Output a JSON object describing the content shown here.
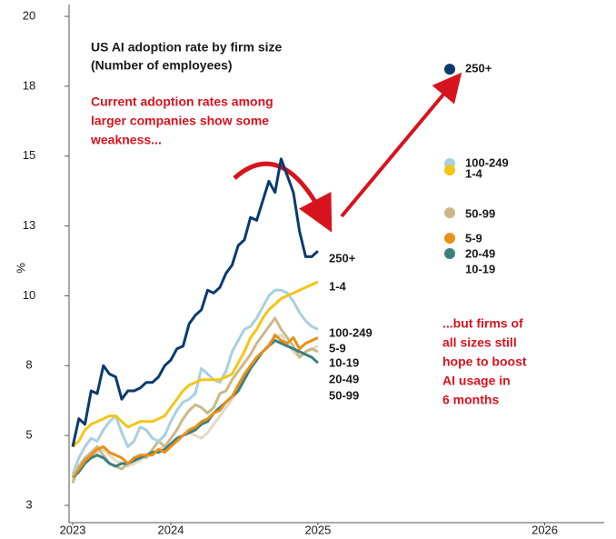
{
  "chart_data": {
    "type": "line",
    "title": "US AI adoption rate by firm size",
    "subtitle": "(Number of employees)",
    "y_label": "%",
    "annotations": [
      [
        "Current adoption rates among",
        "larger companies show some",
        "weakness..."
      ],
      [
        "...but firms of",
        "all sizes still",
        "hope to boost",
        "AI usage in",
        "6 months"
      ]
    ],
    "x": [
      0,
      1,
      2,
      3,
      4,
      5,
      6,
      7,
      8,
      9,
      10,
      11,
      12,
      13,
      14,
      15,
      16,
      17,
      18,
      19,
      20,
      21,
      22,
      23,
      24,
      25,
      26,
      27,
      28,
      29,
      30,
      31,
      32,
      33,
      34,
      35,
      36,
      37,
      38,
      39,
      40
    ],
    "xlim": [
      -0.6,
      86.7
    ],
    "xticks": [
      {
        "value": 0,
        "label": "2023"
      },
      {
        "value": 16,
        "label": "2024"
      },
      {
        "value": 40,
        "label": "2025"
      },
      {
        "value": 77,
        "label": "2026"
      }
    ],
    "ylim": [
      2.5,
      20
    ],
    "yticks": [
      {
        "value": 2.5,
        "label": "3"
      },
      {
        "value": 5,
        "label": "5"
      },
      {
        "value": 7.5,
        "label": "8"
      },
      {
        "value": 10,
        "label": "10"
      },
      {
        "value": 12.5,
        "label": "13"
      },
      {
        "value": 15,
        "label": "15"
      },
      {
        "value": 17.5,
        "label": "18"
      },
      {
        "value": 20,
        "label": "20"
      }
    ],
    "series": [
      {
        "name": "10-19",
        "color": "#e3dacb",
        "outlook": null,
        "values": [
          3.4,
          3.8,
          4.1,
          4.3,
          4.4,
          4.5,
          4.3,
          4.1,
          4.0,
          3.9,
          4.0,
          4.1,
          4.3,
          4.4,
          4.5,
          4.6,
          4.7,
          4.8,
          5.0,
          5.1,
          5.0,
          4.9,
          5.1,
          5.4,
          5.7,
          6.0,
          6.3,
          6.6,
          7.0,
          7.4,
          7.8,
          8.0,
          8.3,
          8.5,
          8.6,
          8.3,
          8.0,
          7.8,
          8.0,
          8.1,
          8.2
        ]
      },
      {
        "name": "50-99",
        "color": "#c9b98a",
        "outlook": 12.97,
        "values": [
          3.3,
          3.9,
          4.2,
          4.4,
          4.6,
          4.3,
          4.0,
          3.9,
          3.8,
          4.0,
          4.1,
          4.3,
          4.2,
          4.5,
          4.8,
          4.6,
          4.9,
          5.2,
          5.6,
          5.9,
          6.1,
          6.0,
          5.8,
          6.0,
          6.5,
          6.6,
          7.0,
          7.3,
          7.6,
          7.9,
          8.3,
          8.6,
          8.9,
          9.2,
          8.8,
          8.5,
          8.2,
          7.8,
          8.0,
          8.1,
          8.0
        ]
      },
      {
        "name": "20-49",
        "color": "#3d7f80",
        "outlook": 11.51,
        "values": [
          3.5,
          3.7,
          4.0,
          4.2,
          4.3,
          4.2,
          4.0,
          3.9,
          4.0,
          4.0,
          4.1,
          4.2,
          4.3,
          4.4,
          4.4,
          4.5,
          4.7,
          4.9,
          5.0,
          5.1,
          5.2,
          5.4,
          5.5,
          5.8,
          6.0,
          6.2,
          6.4,
          6.6,
          7.0,
          7.4,
          7.7,
          8.0,
          8.2,
          8.4,
          8.3,
          8.2,
          8.1,
          8.0,
          7.9,
          7.8,
          7.6
        ]
      },
      {
        "name": "5-9",
        "color": "#e8901a",
        "outlook": 12.06,
        "values": [
          3.5,
          3.8,
          4.1,
          4.3,
          4.5,
          4.6,
          4.4,
          4.3,
          4.2,
          4.0,
          4.2,
          4.3,
          4.3,
          4.3,
          4.5,
          4.4,
          4.6,
          4.8,
          5.0,
          5.2,
          5.3,
          5.5,
          5.6,
          5.8,
          5.9,
          6.2,
          6.4,
          6.8,
          7.2,
          7.5,
          7.8,
          8.0,
          8.2,
          8.6,
          8.4,
          8.3,
          8.5,
          8.1,
          8.3,
          8.4,
          8.5
        ]
      },
      {
        "name": "100-249",
        "color": "#a8d0e0",
        "outlook": 14.73,
        "values": [
          3.6,
          4.2,
          4.6,
          4.9,
          4.8,
          5.2,
          5.5,
          5.7,
          5.1,
          4.6,
          4.8,
          5.3,
          5.2,
          4.9,
          4.8,
          5.0,
          5.5,
          5.9,
          6.2,
          6.3,
          6.5,
          7.4,
          7.2,
          7.0,
          6.9,
          7.3,
          8.0,
          8.4,
          8.8,
          8.9,
          9.2,
          9.6,
          10.0,
          10.2,
          10.2,
          10.1,
          9.8,
          9.4,
          9.1,
          8.9,
          8.8
        ]
      },
      {
        "name": "1-4",
        "color": "#f5c518",
        "outlook": 14.5,
        "values": [
          4.6,
          4.8,
          5.2,
          5.4,
          5.5,
          5.6,
          5.7,
          5.7,
          5.5,
          5.3,
          5.4,
          5.5,
          5.5,
          5.5,
          5.6,
          5.7,
          6.0,
          6.3,
          6.6,
          6.8,
          6.9,
          7.0,
          7.0,
          7.0,
          7.0,
          7.1,
          7.2,
          7.6,
          8.0,
          8.5,
          8.8,
          9.2,
          9.5,
          9.7,
          9.9,
          10.0,
          10.1,
          10.2,
          10.3,
          10.4,
          10.5
        ]
      },
      {
        "name": "250+",
        "color": "#0b3a6e",
        "outlook": 18.11,
        "values": [
          4.6,
          5.6,
          5.4,
          6.6,
          6.5,
          7.5,
          7.2,
          7.1,
          6.3,
          6.6,
          6.6,
          6.7,
          6.9,
          6.9,
          7.1,
          7.5,
          7.7,
          8.1,
          8.2,
          9.0,
          9.3,
          9.5,
          10.2,
          10.1,
          10.3,
          10.8,
          11.1,
          11.8,
          12.0,
          12.8,
          12.7,
          13.4,
          14.1,
          13.7,
          14.9,
          14.3,
          13.7,
          12.3,
          11.4,
          11.4,
          11.6
        ]
      }
    ]
  }
}
